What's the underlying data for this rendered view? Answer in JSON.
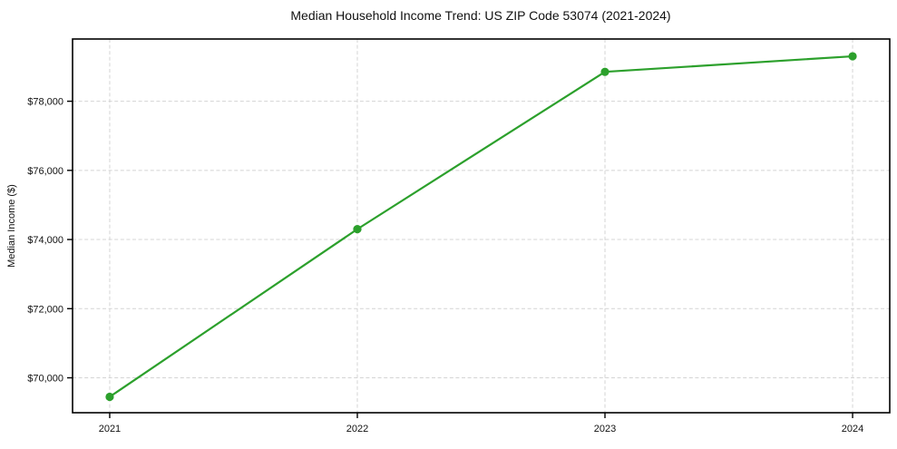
{
  "chart_data": {
    "type": "line",
    "title": "Median Household Income Trend: US ZIP Code 53074 (2021-2024)",
    "xlabel": "",
    "ylabel": "Median Income ($)",
    "x": [
      2021,
      2022,
      2023,
      2024
    ],
    "xtick_labels": [
      "2021",
      "2022",
      "2023",
      "2024"
    ],
    "series": [
      {
        "name": "Median Income ($)",
        "values": [
          69450,
          74300,
          78850,
          79300
        ],
        "color": "#2ca02c",
        "marker": "circle",
        "marker_radius": 4.6,
        "line_width": 2.2
      }
    ],
    "xlim": [
      2020.85,
      2024.15
    ],
    "ylim": [
      68990,
      79800
    ],
    "yticks": [
      70000,
      72000,
      74000,
      76000,
      78000
    ],
    "ytick_labels": [
      "$70,000",
      "$72,000",
      "$74,000",
      "$76,000",
      "$78,000"
    ],
    "grid": true,
    "grid_line_style": "dashed",
    "grid_color": "#d4d4d4",
    "spine_color": "#000000",
    "legend_position": "none",
    "background_color": "#ffffff"
  }
}
